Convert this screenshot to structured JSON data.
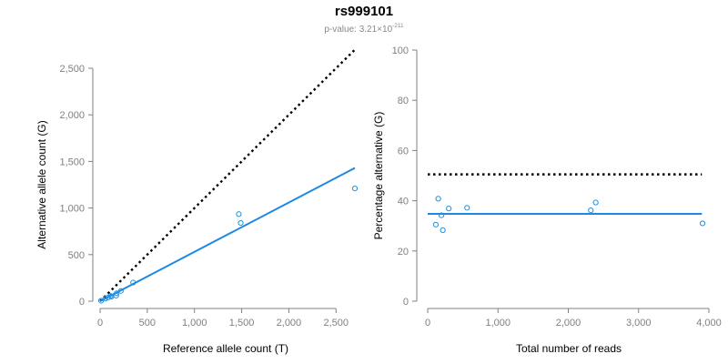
{
  "title": "rs999101",
  "subtitle": {
    "prefix": "p-value: 3.21×10",
    "exponent": "-211"
  },
  "colors": {
    "points": "#1f8fdc",
    "fit_line": "#1e88e5",
    "reference_line": "#000000",
    "axis": "#808080",
    "tick_text": "#808080"
  },
  "chart_data": [
    {
      "type": "scatter",
      "title": "",
      "xlabel": "Reference allele count (T)",
      "ylabel": "Alternative allele count (G)",
      "xlim": [
        0,
        2700
      ],
      "ylim": [
        0,
        2500
      ],
      "xticks": [
        0,
        500,
        1000,
        1500,
        2000,
        2500
      ],
      "xtick_labels": [
        "0",
        "500",
        "1,000",
        "1,500",
        "2,000",
        "2,500"
      ],
      "yticks": [
        0,
        500,
        1000,
        1500,
        2000,
        2500
      ],
      "ytick_labels": [
        "0",
        "500",
        "1,000",
        "1,500",
        "2,000",
        "2,500"
      ],
      "points": [
        {
          "x": 10,
          "y": 5
        },
        {
          "x": 55,
          "y": 28
        },
        {
          "x": 85,
          "y": 40
        },
        {
          "x": 110,
          "y": 58
        },
        {
          "x": 120,
          "y": 50
        },
        {
          "x": 170,
          "y": 60
        },
        {
          "x": 175,
          "y": 85
        },
        {
          "x": 220,
          "y": 110
        },
        {
          "x": 350,
          "y": 200
        },
        {
          "x": 1470,
          "y": 935
        },
        {
          "x": 1490,
          "y": 840
        },
        {
          "x": 2700,
          "y": 1210
        }
      ],
      "reference_line": {
        "label": "y = x",
        "x": [
          0,
          2700
        ],
        "y": [
          0,
          2700
        ],
        "style": "dotted"
      },
      "fit_line": {
        "x": [
          0,
          2700
        ],
        "y": [
          0,
          1430
        ],
        "style": "solid"
      }
    },
    {
      "type": "scatter",
      "title": "",
      "xlabel": "Total number of reads",
      "ylabel": "Percentage alternative (G)",
      "xlim": [
        0,
        4000
      ],
      "ylim": [
        0,
        100
      ],
      "xticks": [
        0,
        1000,
        2000,
        3000,
        4000
      ],
      "xtick_labels": [
        "0",
        "1,000",
        "2,000",
        "3,000",
        "4,000"
      ],
      "yticks": [
        0,
        20,
        40,
        60,
        80,
        100
      ],
      "ytick_labels": [
        "0",
        "20",
        "40",
        "60",
        "80",
        "100"
      ],
      "points": [
        {
          "x": 115,
          "y": 30.5
        },
        {
          "x": 150,
          "y": 40.8
        },
        {
          "x": 195,
          "y": 34.2
        },
        {
          "x": 215,
          "y": 28.3
        },
        {
          "x": 300,
          "y": 36.9
        },
        {
          "x": 560,
          "y": 37.2
        },
        {
          "x": 2320,
          "y": 36.2
        },
        {
          "x": 2390,
          "y": 39.3
        },
        {
          "x": 3910,
          "y": 31.0
        }
      ],
      "reference_line": {
        "label": "50%",
        "x": [
          0,
          3900
        ],
        "y": [
          50.5,
          50.5
        ],
        "style": "dotted"
      },
      "fit_line": {
        "x": [
          0,
          3900
        ],
        "y": [
          34.8,
          34.8
        ],
        "style": "solid"
      }
    }
  ]
}
